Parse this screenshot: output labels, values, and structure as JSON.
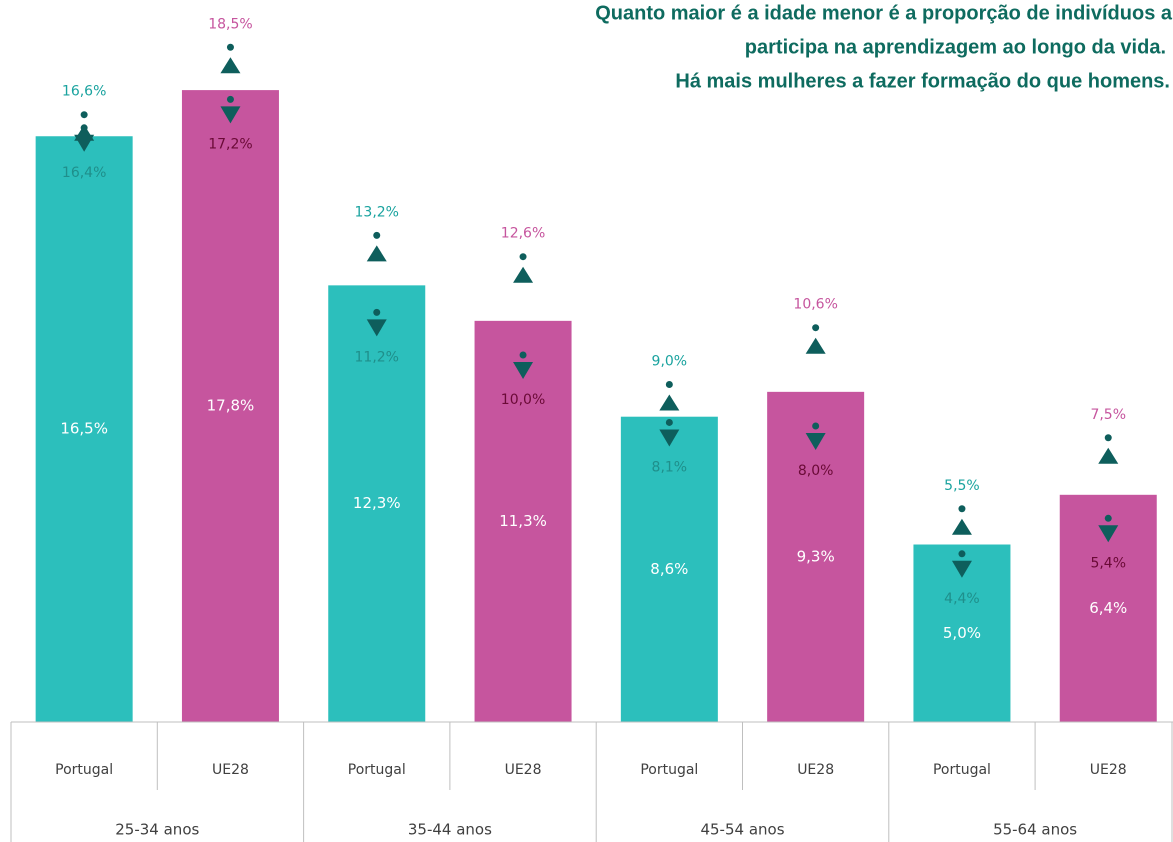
{
  "chart_data": {
    "type": "bar",
    "title": [
      "Quanto maior é a idade menor é a proporção de indivíduos a",
      "participa na aprendizagem ao longo da vida.",
      "Há mais mulheres a fazer formação do que homens."
    ],
    "groups": [
      "25-34 anos",
      "35-44 anos",
      "45-54 anos",
      "55-64 anos"
    ],
    "categories": [
      "Portugal",
      "UE28",
      "Portugal",
      "UE28",
      "Portugal",
      "UE28",
      "Portugal",
      "UE28"
    ],
    "colors": [
      "#2cbfbc",
      "#c6559e",
      "#2cbfbc",
      "#c6559e",
      "#2cbfbc",
      "#c6559e",
      "#2cbfbc",
      "#c6559e"
    ],
    "ylim": [
      0,
      20
    ],
    "values": [
      16.5,
      17.8,
      12.3,
      11.3,
      8.6,
      9.3,
      5.0,
      6.4
    ],
    "value_labels": [
      "16,5%",
      "17,8%",
      "12,3%",
      "11,3%",
      "8,6%",
      "9,3%",
      "5,0%",
      "6,4%"
    ],
    "marker_color": "#0e5e5c",
    "women": {
      "values": [
        16.6,
        18.5,
        13.2,
        12.6,
        9.0,
        10.6,
        5.5,
        7.5
      ],
      "value_labels": [
        "16,6%",
        "18,5%",
        "13,2%",
        "12,6%",
        "9,0%",
        "10,6%",
        "5,5%",
        "7,5%"
      ],
      "label_colors": [
        "#1aa39f",
        "#c6559e",
        "#1aa39f",
        "#c6559e",
        "#1aa39f",
        "#c6559e",
        "#1aa39f",
        "#c6559e"
      ]
    },
    "men": {
      "values": [
        16.4,
        17.2,
        11.2,
        10.0,
        8.1,
        8.0,
        4.4,
        5.4
      ],
      "value_labels": [
        "16,4%",
        "17,2%",
        "11,2%",
        "10,0%",
        "8,1%",
        "8,0%",
        "4,4%",
        "5,4%"
      ],
      "label_colors": [
        "#1f8f8b",
        "#6a0a36",
        "#1f8f8b",
        "#6a0a36",
        "#1f8f8b",
        "#6a0a36",
        "#1f8f8b",
        "#6a0a36"
      ]
    }
  }
}
